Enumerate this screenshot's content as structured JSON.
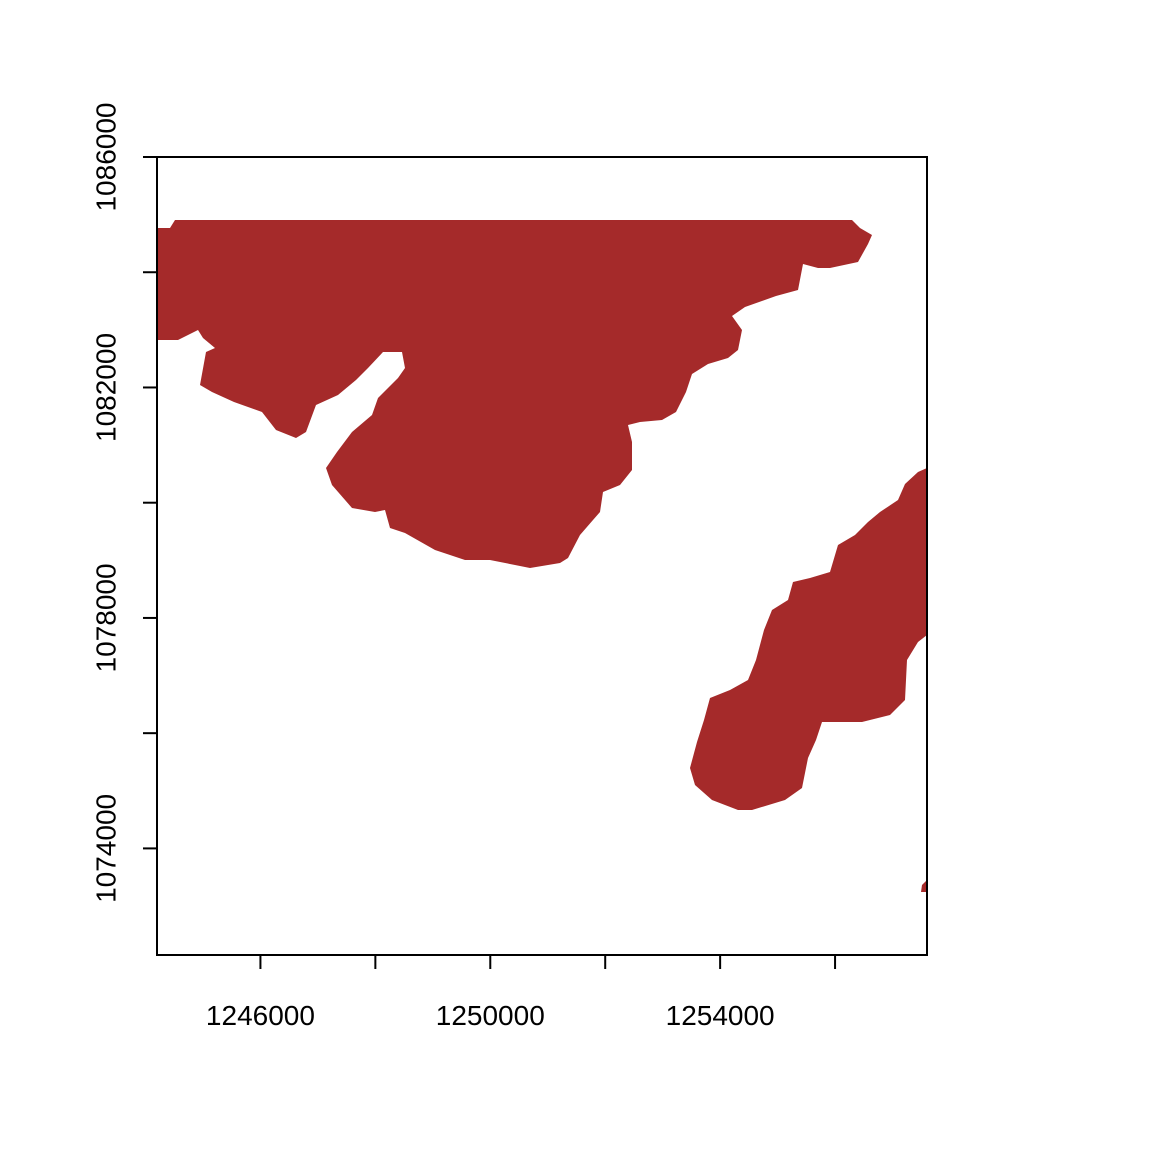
{
  "plot": {
    "x_axis": {
      "range": [
        1244200,
        1257600
      ],
      "ticks": [
        1246000,
        1248000,
        1250000,
        1252000,
        1254000,
        1256000
      ],
      "labels": [
        {
          "value": 1246000,
          "text": "1246000"
        },
        {
          "value": 1250000,
          "text": "1250000"
        },
        {
          "value": 1254000,
          "text": "1254000"
        }
      ]
    },
    "y_axis": {
      "range": [
        1072150,
        1086000
      ],
      "ticks": [
        1074000,
        1076000,
        1078000,
        1080000,
        1082000,
        1084000,
        1086000
      ],
      "labels": [
        {
          "value": 1074000,
          "text": "1074000"
        },
        {
          "value": 1078000,
          "text": "1078000"
        },
        {
          "value": 1082000,
          "text": "1082000"
        },
        {
          "value": 1086000,
          "text": "1086000"
        }
      ]
    },
    "land_color": "#a52a2a",
    "background_color": "#ffffff"
  }
}
